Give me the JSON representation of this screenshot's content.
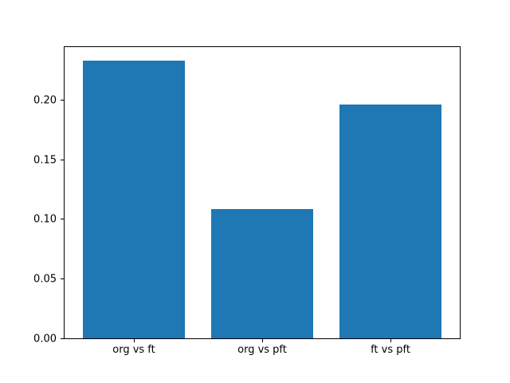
{
  "figure": {
    "background_color": "#ffffff",
    "title": ""
  },
  "chart_data": {
    "type": "bar",
    "categories": [
      "org vs ft",
      "org vs pft",
      "ft vs pft"
    ],
    "values": [
      0.233,
      0.108,
      0.196
    ],
    "title": "",
    "xlabel": "",
    "ylabel": "",
    "ylim": [
      0,
      0.244
    ],
    "xlim": [
      -0.54,
      2.54
    ],
    "yticks": [
      0.0,
      0.05,
      0.1,
      0.15,
      0.2
    ],
    "ytick_labels": [
      "0.00",
      "0.05",
      "0.10",
      "0.15",
      "0.20"
    ],
    "bar_color": "#1f77b4",
    "bar_width": 0.8,
    "grid": false,
    "legend": null
  }
}
